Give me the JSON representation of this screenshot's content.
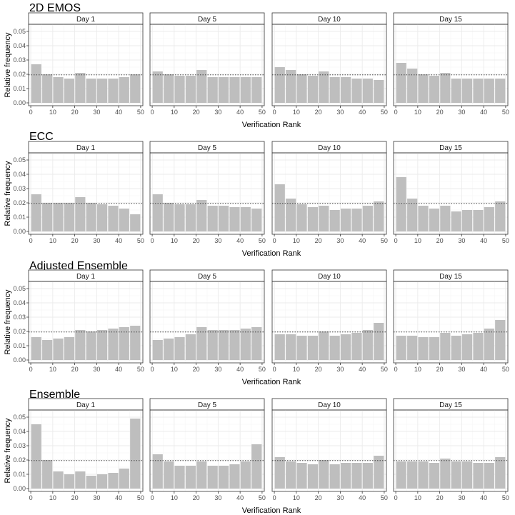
{
  "chart_data": [
    {
      "type": "bar",
      "title": "2D EMOS",
      "xlabel": "Verification Rank",
      "ylabel": "Relative frequency",
      "xlim": [
        -1,
        51
      ],
      "ylim": [
        -0.002,
        0.055
      ],
      "x_ticks": [
        "0",
        "10",
        "20",
        "30",
        "40",
        "50"
      ],
      "y_ticks": [
        "0.00",
        "0.01",
        "0.02",
        "0.03",
        "0.04",
        "0.05"
      ],
      "reference_line": 0.0196,
      "bin_centers": [
        2.5,
        7.5,
        12.5,
        17.5,
        22.5,
        27.5,
        32.5,
        37.5,
        42.5,
        47.5
      ],
      "panels": [
        {
          "strip": "Day 1",
          "values": [
            0.027,
            0.02,
            0.018,
            0.017,
            0.021,
            0.017,
            0.017,
            0.017,
            0.018,
            0.02
          ]
        },
        {
          "strip": "Day 5",
          "values": [
            0.022,
            0.02,
            0.019,
            0.019,
            0.023,
            0.018,
            0.018,
            0.018,
            0.018,
            0.018
          ]
        },
        {
          "strip": "Day 10",
          "values": [
            0.025,
            0.023,
            0.02,
            0.019,
            0.022,
            0.018,
            0.018,
            0.017,
            0.017,
            0.016
          ]
        },
        {
          "strip": "Day 15",
          "values": [
            0.028,
            0.024,
            0.02,
            0.019,
            0.021,
            0.017,
            0.017,
            0.017,
            0.017,
            0.017
          ]
        }
      ]
    },
    {
      "type": "bar",
      "title": "ECC",
      "xlabel": "Verification Rank",
      "ylabel": "Relative frequency",
      "xlim": [
        -1,
        51
      ],
      "ylim": [
        -0.002,
        0.055
      ],
      "x_ticks": [
        "0",
        "10",
        "20",
        "30",
        "40",
        "50"
      ],
      "y_ticks": [
        "0.00",
        "0.01",
        "0.02",
        "0.03",
        "0.04",
        "0.05"
      ],
      "reference_line": 0.0196,
      "bin_centers": [
        2.5,
        7.5,
        12.5,
        17.5,
        22.5,
        27.5,
        32.5,
        37.5,
        42.5,
        47.5
      ],
      "panels": [
        {
          "strip": "Day 1",
          "values": [
            0.026,
            0.02,
            0.02,
            0.02,
            0.024,
            0.02,
            0.019,
            0.018,
            0.016,
            0.012
          ]
        },
        {
          "strip": "Day 5",
          "values": [
            0.026,
            0.02,
            0.019,
            0.019,
            0.022,
            0.018,
            0.018,
            0.017,
            0.017,
            0.016
          ]
        },
        {
          "strip": "Day 10",
          "values": [
            0.033,
            0.023,
            0.019,
            0.017,
            0.018,
            0.015,
            0.016,
            0.016,
            0.018,
            0.021
          ]
        },
        {
          "strip": "Day 15",
          "values": [
            0.038,
            0.023,
            0.018,
            0.016,
            0.018,
            0.014,
            0.015,
            0.015,
            0.017,
            0.021
          ]
        }
      ]
    },
    {
      "type": "bar",
      "title": "Adjusted Ensemble",
      "xlabel": "Verification Rank",
      "ylabel": "Relative frequency",
      "xlim": [
        -1,
        51
      ],
      "ylim": [
        -0.002,
        0.055
      ],
      "x_ticks": [
        "0",
        "10",
        "20",
        "30",
        "40",
        "50"
      ],
      "y_ticks": [
        "0.00",
        "0.01",
        "0.02",
        "0.03",
        "0.04",
        "0.05"
      ],
      "reference_line": 0.0196,
      "bin_centers": [
        2.5,
        7.5,
        12.5,
        17.5,
        22.5,
        27.5,
        32.5,
        37.5,
        42.5,
        47.5
      ],
      "panels": [
        {
          "strip": "Day 1",
          "values": [
            0.016,
            0.014,
            0.015,
            0.016,
            0.021,
            0.02,
            0.021,
            0.022,
            0.023,
            0.024
          ]
        },
        {
          "strip": "Day 5",
          "values": [
            0.014,
            0.015,
            0.016,
            0.018,
            0.023,
            0.021,
            0.021,
            0.021,
            0.022,
            0.023
          ]
        },
        {
          "strip": "Day 10",
          "values": [
            0.018,
            0.018,
            0.017,
            0.017,
            0.02,
            0.017,
            0.018,
            0.019,
            0.021,
            0.026
          ]
        },
        {
          "strip": "Day 15",
          "values": [
            0.017,
            0.017,
            0.016,
            0.016,
            0.019,
            0.017,
            0.018,
            0.019,
            0.022,
            0.028
          ]
        }
      ]
    },
    {
      "type": "bar",
      "title": "Ensemble",
      "xlabel": "Verification Rank",
      "ylabel": "Relative frequency",
      "xlim": [
        -1,
        51
      ],
      "ylim": [
        -0.002,
        0.055
      ],
      "x_ticks": [
        "0",
        "10",
        "20",
        "30",
        "40",
        "50"
      ],
      "y_ticks": [
        "0.00",
        "0.01",
        "0.02",
        "0.03",
        "0.04",
        "0.05"
      ],
      "reference_line": 0.0196,
      "bin_centers": [
        2.5,
        7.5,
        12.5,
        17.5,
        22.5,
        27.5,
        32.5,
        37.5,
        42.5,
        47.5
      ],
      "panels": [
        {
          "strip": "Day 1",
          "values": [
            0.045,
            0.02,
            0.012,
            0.01,
            0.012,
            0.009,
            0.01,
            0.011,
            0.014,
            0.049
          ]
        },
        {
          "strip": "Day 5",
          "values": [
            0.024,
            0.019,
            0.016,
            0.016,
            0.019,
            0.016,
            0.016,
            0.017,
            0.019,
            0.031
          ]
        },
        {
          "strip": "Day 10",
          "values": [
            0.022,
            0.019,
            0.018,
            0.017,
            0.02,
            0.017,
            0.018,
            0.018,
            0.018,
            0.023
          ]
        },
        {
          "strip": "Day 15",
          "values": [
            0.019,
            0.019,
            0.019,
            0.018,
            0.021,
            0.019,
            0.019,
            0.018,
            0.018,
            0.022
          ]
        }
      ]
    }
  ],
  "colors": {
    "bar": "#bebebe",
    "grid_major": "#ebebeb",
    "grid_minor": "#f5f5f5",
    "strip_fill": "#ffffff",
    "panel_border": "#333333",
    "reference_line": "#333333",
    "text": "#000000",
    "tick_text": "#4d4d4d"
  }
}
